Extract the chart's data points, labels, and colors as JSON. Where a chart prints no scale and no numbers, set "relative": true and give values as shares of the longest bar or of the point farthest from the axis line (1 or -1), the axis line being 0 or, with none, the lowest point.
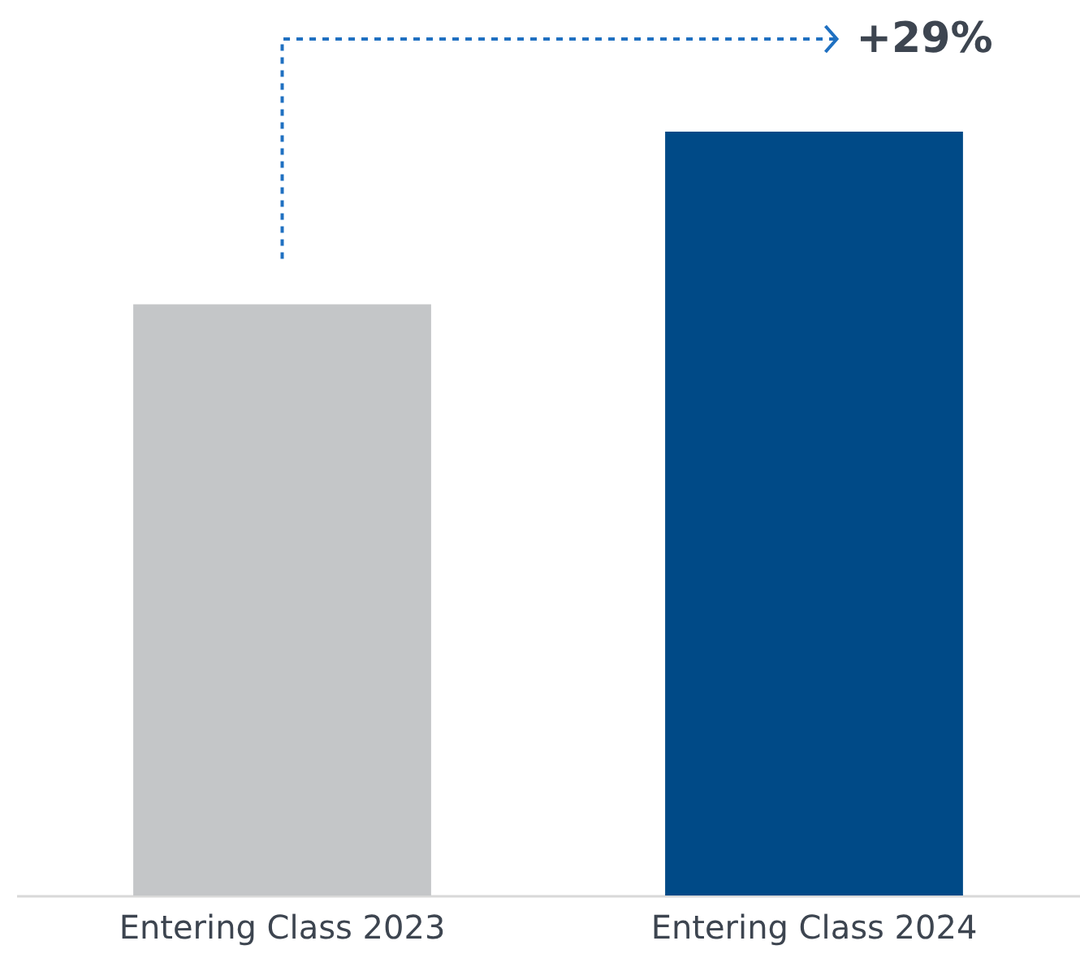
{
  "chart_data": {
    "type": "bar",
    "categories": [
      "Entering Class 2023",
      "Entering Class 2024"
    ],
    "values": [
      0.774,
      1
    ],
    "colors": [
      "#c4c6c8",
      "#004a87"
    ],
    "relative": true,
    "annotations": [
      "+29%"
    ]
  }
}
